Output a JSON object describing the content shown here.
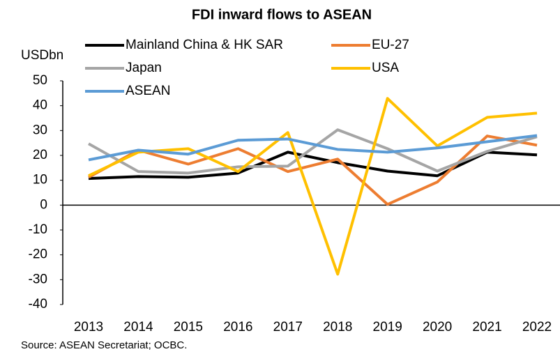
{
  "chart_data": {
    "type": "line",
    "title": "FDI inward flows to ASEAN",
    "y_label": "USDbn",
    "source": "Source: ASEAN Secretariat; OCBC.",
    "categories": [
      "2013",
      "2014",
      "2015",
      "2016",
      "2017",
      "2018",
      "2019",
      "2020",
      "2021",
      "2022"
    ],
    "series": [
      {
        "name": "Mainland China & HK SAR",
        "color": "#000000",
        "values": [
          10.7,
          11.5,
          11.2,
          12.9,
          21.3,
          17.1,
          13.7,
          11.8,
          21.3,
          20.2
        ]
      },
      {
        "name": "EU-27",
        "color": "#ED7D31",
        "values": [
          11.2,
          22.1,
          16.5,
          22.7,
          13.5,
          18.5,
          0.3,
          9.3,
          27.8,
          24.1
        ]
      },
      {
        "name": "Japan",
        "color": "#A5A5A5",
        "values": [
          24.7,
          13.5,
          12.9,
          15.4,
          15.7,
          30.3,
          22.7,
          13.7,
          21.6,
          27.5
        ]
      },
      {
        "name": "USA",
        "color": "#FFC000",
        "values": [
          11.8,
          21.3,
          22.7,
          13.5,
          29.2,
          -27.8,
          42.9,
          23.8,
          35.3,
          37.0
        ]
      },
      {
        "name": "ASEAN",
        "color": "#5B9BD5",
        "values": [
          18.2,
          22.1,
          20.5,
          26.1,
          26.6,
          22.4,
          21.3,
          23.0,
          25.5,
          28.0
        ]
      }
    ],
    "ylim": [
      -40,
      50
    ],
    "yticks": [
      -40,
      -30,
      -20,
      -10,
      0,
      10,
      20,
      30,
      40,
      50
    ],
    "grid": false
  }
}
